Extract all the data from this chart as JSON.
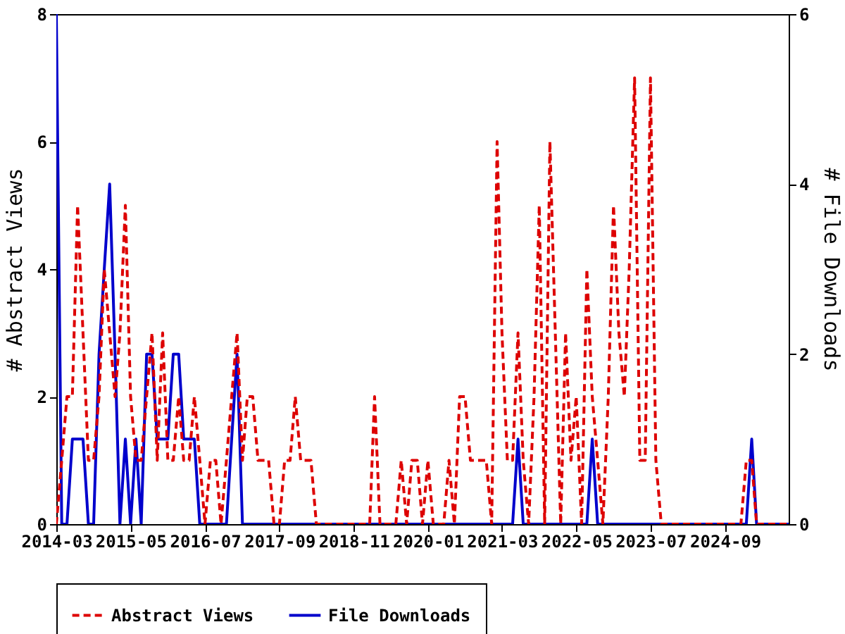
{
  "chart_data": {
    "type": "line",
    "ylabel": "# Abstract Views",
    "y2label": "# File Downloads",
    "legend": "bottom",
    "x": [
      "2014-03",
      "2014-04",
      "2014-05",
      "2014-06",
      "2014-07",
      "2014-08",
      "2014-09",
      "2014-10",
      "2014-11",
      "2014-12",
      "2015-01",
      "2015-02",
      "2015-03",
      "2015-04",
      "2015-05",
      "2015-06",
      "2015-07",
      "2015-08",
      "2015-09",
      "2015-10",
      "2015-11",
      "2015-12",
      "2016-01",
      "2016-02",
      "2016-03",
      "2016-04",
      "2016-05",
      "2016-06",
      "2016-07",
      "2016-08",
      "2016-09",
      "2016-10",
      "2016-11",
      "2016-12",
      "2017-01",
      "2017-02",
      "2017-03",
      "2017-04",
      "2017-05",
      "2017-06",
      "2017-07",
      "2017-08",
      "2017-09",
      "2017-10",
      "2017-11",
      "2017-12",
      "2018-01",
      "2018-02",
      "2018-03",
      "2018-04",
      "2018-05",
      "2018-06",
      "2018-07",
      "2018-08",
      "2018-09",
      "2018-10",
      "2018-11",
      "2018-12",
      "2019-01",
      "2019-02",
      "2019-03",
      "2019-04",
      "2019-05",
      "2019-06",
      "2019-07",
      "2019-08",
      "2019-09",
      "2019-10",
      "2019-11",
      "2019-12",
      "2020-01",
      "2020-02",
      "2020-03",
      "2020-04",
      "2020-05",
      "2020-06",
      "2020-07",
      "2020-08",
      "2020-09",
      "2020-10",
      "2020-11",
      "2020-12",
      "2021-01",
      "2021-02",
      "2021-03",
      "2021-04",
      "2021-05",
      "2021-06",
      "2021-07",
      "2021-08",
      "2021-09",
      "2021-10",
      "2021-11",
      "2021-12",
      "2022-01",
      "2022-02",
      "2022-03",
      "2022-04",
      "2022-05",
      "2022-06",
      "2022-07",
      "2022-08",
      "2022-09",
      "2022-10",
      "2022-11",
      "2022-12",
      "2023-01",
      "2023-02",
      "2023-03",
      "2023-04",
      "2023-05",
      "2023-06",
      "2023-07",
      "2023-08",
      "2023-09",
      "2023-10",
      "2023-11",
      "2023-12",
      "2024-01",
      "2024-02",
      "2024-03",
      "2024-04",
      "2024-05",
      "2024-06",
      "2024-07",
      "2024-08",
      "2024-09",
      "2024-10",
      "2024-11",
      "2024-12",
      "2025-01",
      "2025-02",
      "2025-03",
      "2025-04",
      "2025-05",
      "2025-06",
      "2025-07",
      "2025-08",
      "2025-09"
    ],
    "xlim": [
      "2014-03",
      "2025-09"
    ],
    "xticks": [
      "2014-03",
      "2015-05",
      "2016-07",
      "2017-09",
      "2018-11",
      "2020-01",
      "2021-03",
      "2022-05",
      "2023-07",
      "2024-09"
    ],
    "ylim": [
      0,
      8
    ],
    "yticks": [
      0,
      2,
      4,
      6,
      8
    ],
    "y2lim": [
      0,
      6
    ],
    "y2ticks": [
      0,
      2,
      4,
      6
    ],
    "series": [
      {
        "name": "Abstract Views",
        "color": "#dd0000",
        "line_style": "dashed",
        "values": [
          0,
          1,
          2,
          2,
          5,
          3,
          1,
          1,
          2,
          4,
          3,
          2,
          3,
          5,
          2,
          1,
          1,
          2,
          3,
          1,
          3,
          1,
          1,
          2,
          1,
          1,
          2,
          1,
          0,
          1,
          1,
          0,
          1,
          2,
          3,
          1,
          2,
          2,
          1,
          1,
          1,
          0,
          0,
          1,
          1,
          2,
          1,
          1,
          1,
          0,
          0,
          0,
          0,
          0,
          0,
          0,
          0,
          0,
          0,
          0,
          2,
          0,
          0,
          0,
          0,
          1,
          0,
          1,
          1,
          0,
          1,
          0,
          0,
          0,
          1,
          0,
          2,
          2,
          1,
          1,
          1,
          1,
          0,
          6,
          3,
          1,
          1,
          3,
          1,
          0,
          2,
          5,
          0,
          6,
          3,
          0,
          3,
          1,
          2,
          0,
          4,
          2,
          1,
          0,
          2,
          5,
          3,
          2,
          4,
          7,
          1,
          1,
          7,
          1,
          0,
          0,
          0,
          0,
          0,
          0,
          0,
          0,
          0,
          0,
          0,
          0,
          0,
          0,
          0,
          0,
          1,
          1,
          0,
          0,
          0,
          0,
          0,
          0,
          0
        ]
      },
      {
        "name": "File Downloads",
        "color": "#0000cc",
        "line_style": "solid",
        "axis": "y2",
        "values": [
          6,
          0,
          0,
          1,
          1,
          1,
          0,
          0,
          2,
          3,
          4,
          2,
          0,
          1,
          0,
          1,
          0,
          2,
          2,
          1,
          1,
          1,
          2,
          2,
          1,
          1,
          1,
          0,
          0,
          0,
          0,
          0,
          0,
          1,
          2,
          0,
          0,
          0,
          0,
          0,
          0,
          0,
          0,
          0,
          0,
          0,
          0,
          0,
          0,
          0,
          0,
          0,
          0,
          0,
          0,
          0,
          0,
          0,
          0,
          0,
          0,
          0,
          0,
          0,
          0,
          0,
          0,
          0,
          0,
          0,
          0,
          0,
          0,
          0,
          0,
          0,
          0,
          0,
          0,
          0,
          0,
          0,
          0,
          0,
          0,
          0,
          0,
          1,
          0,
          0,
          0,
          0,
          0,
          0,
          0,
          0,
          0,
          0,
          0,
          0,
          0,
          1,
          0,
          0,
          0,
          0,
          0,
          0,
          0,
          0,
          0,
          0,
          0,
          0,
          0,
          0,
          0,
          0,
          0,
          0,
          0,
          0,
          0,
          0,
          0,
          0,
          0,
          0,
          0,
          0,
          0,
          1,
          0,
          0,
          0,
          0,
          0,
          0,
          0
        ]
      }
    ]
  }
}
